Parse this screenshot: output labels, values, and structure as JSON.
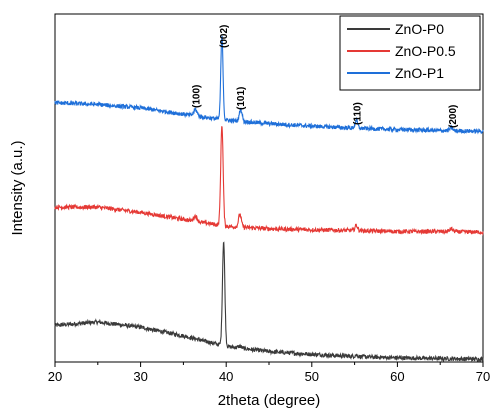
{
  "chart_data": {
    "type": "line",
    "xlabel": "2theta (degree)",
    "ylabel": "Intensity (a.u.)",
    "xlim": [
      20,
      70
    ],
    "xticks": [
      "20",
      "30",
      "40",
      "50",
      "60",
      "70"
    ],
    "y_tick_labels": "none",
    "grid": false,
    "legend_position": "top-right",
    "peak_labels": [
      {
        "text": "(100)",
        "x": 36.4
      },
      {
        "text": "(002)",
        "x": 39.6
      },
      {
        "text": "(101)",
        "x": 41.6
      },
      {
        "text": "(110)",
        "x": 55.2
      },
      {
        "text": "(200)",
        "x": 66.4
      }
    ],
    "series": [
      {
        "name": "ZnO-P0",
        "color": "#3a3a3a",
        "baseline": [
          [
            20,
            0.105
          ],
          [
            25,
            0.115
          ],
          [
            30,
            0.1
          ],
          [
            35,
            0.075
          ],
          [
            40,
            0.045
          ],
          [
            45,
            0.03
          ],
          [
            50,
            0.022
          ],
          [
            55,
            0.016
          ],
          [
            60,
            0.012
          ],
          [
            65,
            0.01
          ],
          [
            70,
            0.008
          ]
        ],
        "peaks": [
          [
            39.7,
            0.3,
            0.14
          ],
          [
            41.6,
            0.005,
            0.2
          ],
          [
            55.2,
            0.004,
            0.15
          ]
        ]
      },
      {
        "name": "ZnO-P0.5",
        "color": "#e53935",
        "baseline": [
          [
            20,
            0.445
          ],
          [
            25,
            0.445
          ],
          [
            30,
            0.43
          ],
          [
            35,
            0.41
          ],
          [
            40,
            0.39
          ],
          [
            45,
            0.383
          ],
          [
            50,
            0.38
          ],
          [
            55,
            0.378
          ],
          [
            60,
            0.375
          ],
          [
            65,
            0.375
          ],
          [
            70,
            0.373
          ]
        ],
        "peaks": [
          [
            36.4,
            0.015,
            0.2
          ],
          [
            39.5,
            0.29,
            0.14
          ],
          [
            41.6,
            0.037,
            0.16
          ],
          [
            55.2,
            0.015,
            0.15
          ],
          [
            66.3,
            0.008,
            0.2
          ]
        ]
      },
      {
        "name": "ZnO-P1",
        "color": "#1e6fd9",
        "baseline": [
          [
            20,
            0.745
          ],
          [
            25,
            0.74
          ],
          [
            30,
            0.73
          ],
          [
            35,
            0.712
          ],
          [
            40,
            0.695
          ],
          [
            45,
            0.685
          ],
          [
            50,
            0.678
          ],
          [
            55,
            0.672
          ],
          [
            60,
            0.668
          ],
          [
            65,
            0.665
          ],
          [
            70,
            0.663
          ]
        ],
        "peaks": [
          [
            36.4,
            0.018,
            0.2
          ],
          [
            39.5,
            0.24,
            0.13
          ],
          [
            41.7,
            0.035,
            0.16
          ],
          [
            55.2,
            0.023,
            0.15
          ],
          [
            66.3,
            0.008,
            0.2
          ]
        ]
      }
    ]
  }
}
